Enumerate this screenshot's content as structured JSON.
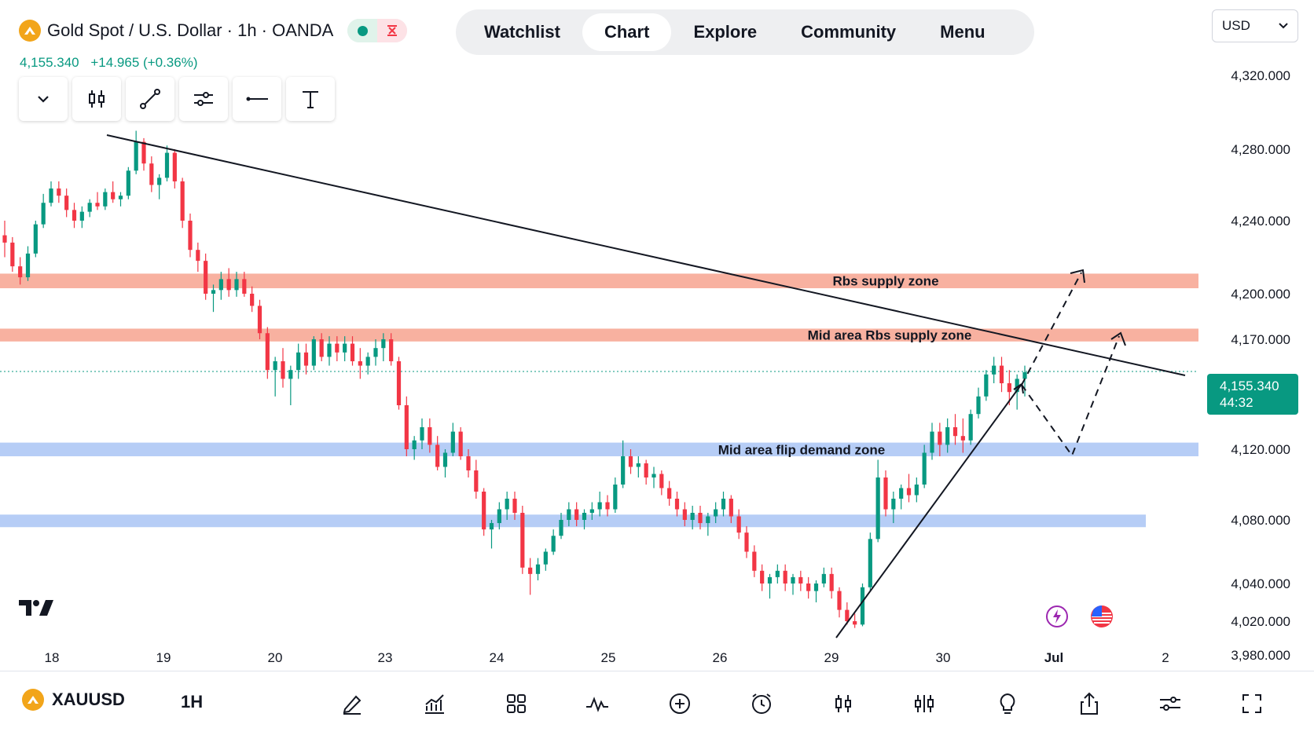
{
  "header": {
    "title": "Gold Spot / U.S. Dollar · 1h · OANDA",
    "last_price": "4,155.340",
    "change": "+14.965 (+0.36%)"
  },
  "nav": {
    "tabs": [
      "Watchlist",
      "Chart",
      "Explore",
      "Community",
      "Menu"
    ],
    "active": "Chart"
  },
  "currency": "USD",
  "last_price_tag": {
    "price": "4,155.340",
    "countdown": "44:32"
  },
  "bottom_bar": {
    "symbol": "XAUUSD",
    "timeframe": "1H"
  },
  "colors": {
    "up": "#089981",
    "down": "#f23645",
    "supply_zone": "#f7a38f",
    "demand_zone": "#a9c4f5"
  },
  "chart_data": {
    "type": "candlestick",
    "ylim": [
      3970,
      4340
    ],
    "y_ticks": [
      "4,320.000",
      "4,280.000",
      "4,240.000",
      "4,200.000",
      "4,170.000",
      "4,120.000",
      "4,080.000",
      "4,040.000",
      "4,020.000",
      "3,980.000"
    ],
    "x_ticks": [
      "18",
      "19",
      "20",
      "23",
      "24",
      "25",
      "26",
      "29",
      "30",
      "Jul",
      "2"
    ],
    "current_price": 4155.34,
    "zones": [
      {
        "label": "Rbs supply zone",
        "kind": "supply",
        "from": 4203,
        "to": 4211
      },
      {
        "label": "Mid area Rbs supply zone",
        "kind": "supply",
        "from": 4169,
        "to": 4177
      },
      {
        "label": "Mid area flip demand zone",
        "kind": "demand",
        "from": 4116,
        "to": 4123
      },
      {
        "label": "",
        "kind": "demand",
        "from": 4076,
        "to": 4083
      }
    ],
    "trendlines": [
      {
        "kind": "descending resistance",
        "from_bar": 0,
        "from_price": 4288,
        "to_bar": 1,
        "to_price": 4162
      },
      {
        "kind": "ascending support",
        "from_bar": 0,
        "from_price": 4012,
        "to_bar": 1,
        "to_price": 4155
      }
    ],
    "candles": [
      [
        4232,
        4240,
        4220,
        4228
      ],
      [
        4228,
        4231,
        4212,
        4215
      ],
      [
        4215,
        4220,
        4205,
        4209
      ],
      [
        4209,
        4226,
        4207,
        4222
      ],
      [
        4222,
        4240,
        4220,
        4238
      ],
      [
        4238,
        4255,
        4236,
        4250
      ],
      [
        4250,
        4262,
        4248,
        4258
      ],
      [
        4258,
        4262,
        4250,
        4254
      ],
      [
        4254,
        4258,
        4242,
        4246
      ],
      [
        4246,
        4250,
        4236,
        4240
      ],
      [
        4240,
        4248,
        4236,
        4245
      ],
      [
        4245,
        4252,
        4242,
        4250
      ],
      [
        4250,
        4256,
        4246,
        4248
      ],
      [
        4248,
        4258,
        4246,
        4256
      ],
      [
        4256,
        4262,
        4250,
        4252
      ],
      [
        4252,
        4256,
        4248,
        4254
      ],
      [
        4254,
        4270,
        4252,
        4268
      ],
      [
        4268,
        4290,
        4266,
        4284
      ],
      [
        4284,
        4286,
        4268,
        4272
      ],
      [
        4272,
        4276,
        4256,
        4260
      ],
      [
        4260,
        4266,
        4252,
        4264
      ],
      [
        4264,
        4282,
        4262,
        4278
      ],
      [
        4278,
        4280,
        4258,
        4262
      ],
      [
        4262,
        4264,
        4236,
        4240
      ],
      [
        4240,
        4244,
        4220,
        4224
      ],
      [
        4224,
        4228,
        4212,
        4218
      ],
      [
        4218,
        4222,
        4196,
        4200
      ],
      [
        4200,
        4205,
        4188,
        4202
      ],
      [
        4202,
        4212,
        4196,
        4208
      ],
      [
        4208,
        4214,
        4198,
        4202
      ],
      [
        4202,
        4212,
        4198,
        4208
      ],
      [
        4208,
        4212,
        4198,
        4200
      ],
      [
        4200,
        4204,
        4188,
        4192
      ],
      [
        4192,
        4196,
        4170,
        4174
      ],
      [
        4174,
        4178,
        4152,
        4156
      ],
      [
        4156,
        4162,
        4144,
        4160
      ],
      [
        4160,
        4166,
        4148,
        4152
      ],
      [
        4152,
        4158,
        4140,
        4156
      ],
      [
        4156,
        4168,
        4152,
        4164
      ],
      [
        4164,
        4168,
        4154,
        4158
      ],
      [
        4158,
        4172,
        4156,
        4170
      ],
      [
        4170,
        4174,
        4160,
        4162
      ],
      [
        4162,
        4172,
        4158,
        4168
      ],
      [
        4168,
        4172,
        4160,
        4164
      ],
      [
        4164,
        4172,
        4160,
        4168
      ],
      [
        4168,
        4172,
        4158,
        4160
      ],
      [
        4160,
        4166,
        4152,
        4158
      ],
      [
        4158,
        4164,
        4154,
        4162
      ],
      [
        4162,
        4170,
        4158,
        4166
      ],
      [
        4166,
        4174,
        4160,
        4170
      ],
      [
        4170,
        4174,
        4158,
        4160
      ],
      [
        4160,
        4162,
        4138,
        4140
      ],
      [
        4140,
        4144,
        4116,
        4120
      ],
      [
        4120,
        4126,
        4114,
        4124
      ],
      [
        4124,
        4134,
        4120,
        4130
      ],
      [
        4130,
        4134,
        4118,
        4122
      ],
      [
        4122,
        4126,
        4108,
        4110
      ],
      [
        4110,
        4120,
        4104,
        4118
      ],
      [
        4118,
        4132,
        4116,
        4128
      ],
      [
        4128,
        4130,
        4114,
        4116
      ],
      [
        4116,
        4120,
        4104,
        4108
      ],
      [
        4108,
        4114,
        4092,
        4096
      ],
      [
        4096,
        4098,
        4070,
        4074
      ],
      [
        4074,
        4080,
        4062,
        4078
      ],
      [
        4078,
        4090,
        4074,
        4086
      ],
      [
        4086,
        4096,
        4080,
        4092
      ],
      [
        4092,
        4096,
        4080,
        4084
      ],
      [
        4084,
        4088,
        4046,
        4050
      ],
      [
        4050,
        4056,
        4034,
        4046
      ],
      [
        4046,
        4056,
        4042,
        4052
      ],
      [
        4052,
        4062,
        4048,
        4060
      ],
      [
        4060,
        4074,
        4058,
        4070
      ],
      [
        4070,
        4084,
        4068,
        4080
      ],
      [
        4080,
        4090,
        4076,
        4086
      ],
      [
        4086,
        4090,
        4076,
        4080
      ],
      [
        4080,
        4086,
        4074,
        4084
      ],
      [
        4084,
        4090,
        4080,
        4086
      ],
      [
        4086,
        4096,
        4082,
        4090
      ],
      [
        4090,
        4094,
        4082,
        4086
      ],
      [
        4086,
        4104,
        4084,
        4100
      ],
      [
        4100,
        4124,
        4098,
        4116
      ],
      [
        4116,
        4120,
        4106,
        4110
      ],
      [
        4110,
        4116,
        4104,
        4112
      ],
      [
        4112,
        4114,
        4100,
        4104
      ],
      [
        4104,
        4110,
        4098,
        4106
      ],
      [
        4106,
        4108,
        4094,
        4098
      ],
      [
        4098,
        4102,
        4088,
        4092
      ],
      [
        4092,
        4096,
        4082,
        4086
      ],
      [
        4086,
        4090,
        4076,
        4080
      ],
      [
        4080,
        4088,
        4074,
        4084
      ],
      [
        4084,
        4088,
        4074,
        4078
      ],
      [
        4078,
        4084,
        4070,
        4082
      ],
      [
        4082,
        4090,
        4078,
        4086
      ],
      [
        4086,
        4096,
        4082,
        4092
      ],
      [
        4092,
        4094,
        4078,
        4082
      ],
      [
        4082,
        4086,
        4068,
        4072
      ],
      [
        4072,
        4076,
        4056,
        4060
      ],
      [
        4060,
        4064,
        4044,
        4048
      ],
      [
        4048,
        4052,
        4036,
        4040
      ],
      [
        4040,
        4046,
        4032,
        4044
      ],
      [
        4044,
        4052,
        4040,
        4048
      ],
      [
        4048,
        4052,
        4036,
        4040
      ],
      [
        4040,
        4046,
        4034,
        4044
      ],
      [
        4044,
        4048,
        4036,
        4040
      ],
      [
        4040,
        4044,
        4032,
        4036
      ],
      [
        4036,
        4042,
        4030,
        4040
      ],
      [
        4040,
        4050,
        4038,
        4046
      ],
      [
        4046,
        4050,
        4032,
        4036
      ],
      [
        4036,
        4038,
        4022,
        4026
      ],
      [
        4026,
        4030,
        4016,
        4020
      ],
      [
        4020,
        4024,
        4012,
        4016
      ],
      [
        4016,
        4040,
        4014,
        4038
      ],
      [
        4038,
        4072,
        4036,
        4068
      ],
      [
        4068,
        4114,
        4066,
        4104
      ],
      [
        4104,
        4108,
        4082,
        4086
      ],
      [
        4086,
        4096,
        4078,
        4092
      ],
      [
        4092,
        4100,
        4086,
        4098
      ],
      [
        4098,
        4106,
        4090,
        4094
      ],
      [
        4094,
        4104,
        4090,
        4100
      ],
      [
        4100,
        4122,
        4098,
        4118
      ],
      [
        4118,
        4132,
        4114,
        4128
      ],
      [
        4128,
        4132,
        4116,
        4122
      ],
      [
        4122,
        4134,
        4118,
        4130
      ],
      [
        4130,
        4136,
        4122,
        4126
      ],
      [
        4126,
        4134,
        4118,
        4124
      ],
      [
        4124,
        4138,
        4122,
        4136
      ],
      [
        4136,
        4148,
        4134,
        4144
      ],
      [
        4144,
        4156,
        4142,
        4154
      ],
      [
        4154,
        4162,
        4150,
        4158
      ],
      [
        4158,
        4162,
        4146,
        4150
      ],
      [
        4150,
        4156,
        4140,
        4146
      ],
      [
        4146,
        4154,
        4138,
        4152
      ],
      [
        4152,
        4158,
        4144,
        4155
      ]
    ]
  }
}
